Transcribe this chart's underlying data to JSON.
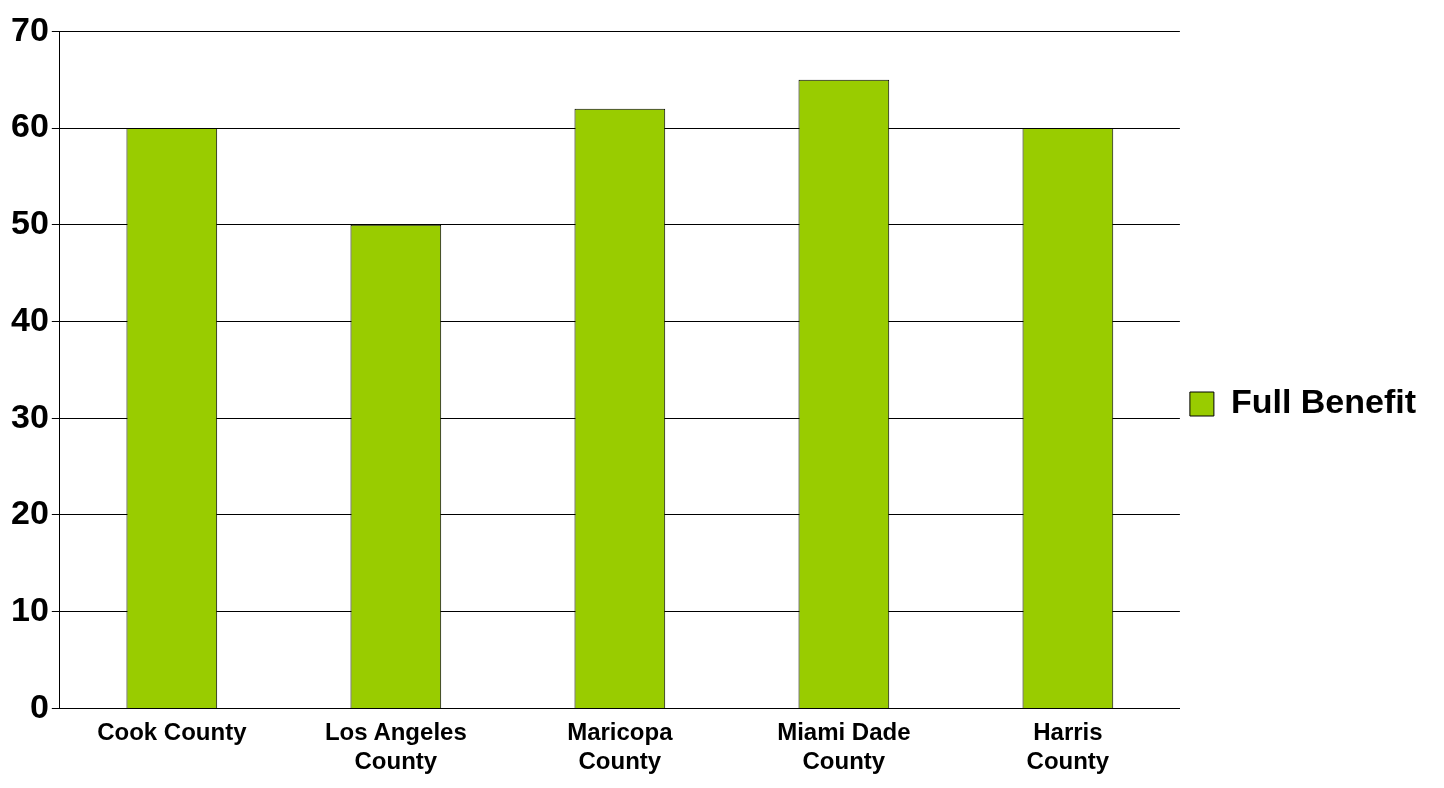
{
  "chart_data": {
    "type": "bar",
    "categories": [
      "Cook County",
      "Los Angeles County",
      "Maricopa County",
      "Miami Dade County",
      "Harris County"
    ],
    "series": [
      {
        "name": "Full Benefit",
        "color": "#99cc00",
        "values": [
          60,
          50,
          62,
          65,
          60
        ]
      }
    ],
    "ylim": [
      0,
      70
    ],
    "yticks": [
      0,
      10,
      20,
      30,
      40,
      50,
      60,
      70
    ],
    "grid": "y",
    "legend": "right"
  }
}
